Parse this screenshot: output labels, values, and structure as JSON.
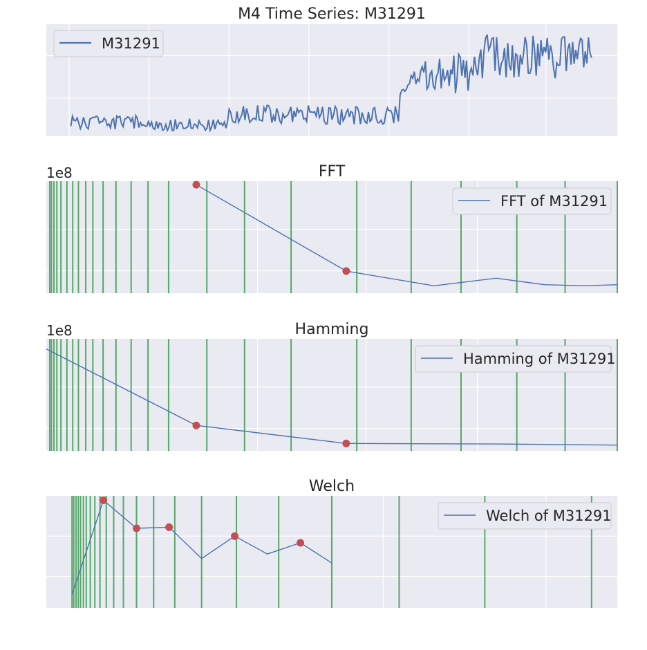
{
  "chart_data": [
    {
      "type": "line",
      "title": "M4 Time Series: M31291",
      "series": [
        {
          "name": "M31291",
          "color": "#4c72b0"
        }
      ],
      "legend": "M31291",
      "legend_placement": "upper-left",
      "grid": true,
      "note": "synthetic time-series of ~330 points; low level for first half, rising sharply after ~60%, most ticks hidden",
      "shape": {
        "n": 330,
        "segments": [
          {
            "start": 0.0,
            "end": 0.13,
            "level": 0.08,
            "noise": 0.07
          },
          {
            "start": 0.13,
            "end": 0.3,
            "level": 0.06,
            "noise": 0.06
          },
          {
            "start": 0.3,
            "end": 0.47,
            "level": 0.16,
            "noise": 0.09
          },
          {
            "start": 0.47,
            "end": 0.63,
            "level": 0.15,
            "noise": 0.09
          },
          {
            "start": 0.63,
            "end": 0.78,
            "level": 0.55,
            "noise": 0.2
          },
          {
            "start": 0.78,
            "end": 1.0,
            "level": 0.72,
            "noise": 0.22
          }
        ]
      }
    },
    {
      "type": "line",
      "title": "FFT",
      "offset_label": "1e8",
      "series": [
        {
          "name": "FFT of M31291",
          "color": "#4c72b0"
        }
      ],
      "legend": "FFT of M31291",
      "legend_placement": "upper-right",
      "xscale": "log",
      "xlim": [
        0.5,
        7.0
      ],
      "ylim": [
        0.0,
        1.0
      ],
      "x": [
        1,
        2,
        3,
        4,
        5,
        6,
        7
      ],
      "y": [
        0.98,
        0.19,
        0.055,
        0.125,
        0.065,
        0.055,
        0.065
      ],
      "peaks_x": [
        1,
        2
      ],
      "peaks_y": [
        0.98,
        0.19
      ],
      "peak_color": "#c44e52",
      "vline_color": "#55a868",
      "vlines": [
        0.508,
        0.512,
        0.518,
        0.525,
        0.535,
        0.55,
        0.565,
        0.58,
        0.6,
        0.62,
        0.65,
        0.69,
        0.74,
        0.8,
        0.88,
        1.05,
        1.25,
        1.55,
        2.1,
        2.7,
        3.4,
        4.4,
        5.5,
        7.0
      ]
    },
    {
      "type": "line",
      "title": "Hamming",
      "offset_label": "1e8",
      "series": [
        {
          "name": "Hamming of M31291",
          "color": "#4c72b0"
        }
      ],
      "legend": "Hamming of M31291",
      "legend_placement": "upper-right",
      "xscale": "log",
      "xlim": [
        0.5,
        7.0
      ],
      "ylim": [
        0.0,
        1.0
      ],
      "x": [
        0.5,
        1,
        2,
        3,
        4,
        5,
        6,
        7
      ],
      "y": [
        0.92,
        0.22,
        0.055,
        0.052,
        0.05,
        0.046,
        0.043,
        0.04
      ],
      "peaks_x": [
        1,
        2
      ],
      "peaks_y": [
        0.22,
        0.055
      ],
      "peak_color": "#c44e52",
      "vline_color": "#55a868",
      "vlines": [
        0.508,
        0.512,
        0.518,
        0.525,
        0.535,
        0.55,
        0.565,
        0.58,
        0.6,
        0.62,
        0.65,
        0.69,
        0.74,
        0.8,
        0.88,
        1.05,
        1.25,
        1.55,
        2.1,
        2.7,
        3.4,
        4.4,
        5.5,
        7.0
      ]
    },
    {
      "type": "line",
      "title": "Welch",
      "series": [
        {
          "name": "Welch of M31291",
          "color": "#4c72b0"
        }
      ],
      "legend": "Welch of M31291",
      "legend_placement": "upper-right",
      "xlim": [
        0.0,
        1.0
      ],
      "ylim": [
        0.0,
        1.0
      ],
      "x": [
        0.045,
        0.1,
        0.158,
        0.215,
        0.272,
        0.33,
        0.387,
        0.445,
        0.5
      ],
      "y": [
        0.12,
        0.96,
        0.71,
        0.72,
        0.44,
        0.64,
        0.48,
        0.58,
        0.4
      ],
      "peaks_x": [
        0.1,
        0.158,
        0.215,
        0.33,
        0.445
      ],
      "peaks_y": [
        0.96,
        0.71,
        0.72,
        0.64,
        0.58
      ],
      "peak_color": "#c44e52",
      "vline_color": "#55a868",
      "vlines": [
        0.045,
        0.048,
        0.052,
        0.056,
        0.06,
        0.065,
        0.07,
        0.077,
        0.085,
        0.094,
        0.105,
        0.118,
        0.135,
        0.158,
        0.188,
        0.225,
        0.272,
        0.333,
        0.407,
        0.5,
        0.618,
        0.768,
        0.955
      ]
    }
  ]
}
